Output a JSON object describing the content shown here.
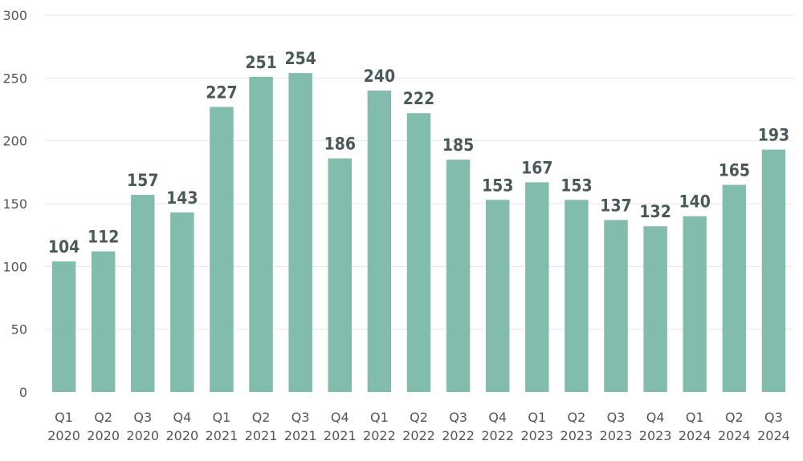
{
  "chart_data": {
    "type": "bar",
    "categories": [
      [
        "Q1",
        "2020"
      ],
      [
        "Q2",
        "2020"
      ],
      [
        "Q3",
        "2020"
      ],
      [
        "Q4",
        "2020"
      ],
      [
        "Q1",
        "2021"
      ],
      [
        "Q2",
        "2021"
      ],
      [
        "Q3",
        "2021"
      ],
      [
        "Q4",
        "2021"
      ],
      [
        "Q1",
        "2022"
      ],
      [
        "Q2",
        "2022"
      ],
      [
        "Q3",
        "2022"
      ],
      [
        "Q4",
        "2022"
      ],
      [
        "Q1",
        "2023"
      ],
      [
        "Q2",
        "2023"
      ],
      [
        "Q3",
        "2023"
      ],
      [
        "Q4",
        "2023"
      ],
      [
        "Q1",
        "2024"
      ],
      [
        "Q2",
        "2024"
      ],
      [
        "Q3",
        "2024"
      ]
    ],
    "values": [
      104,
      112,
      157,
      143,
      227,
      251,
      254,
      186,
      240,
      222,
      185,
      153,
      167,
      153,
      137,
      132,
      140,
      165,
      193
    ],
    "title": "",
    "xlabel": "",
    "ylabel": "",
    "ylim": [
      0,
      300
    ],
    "yticks": [
      0,
      50,
      100,
      150,
      200,
      250,
      300
    ],
    "grid": true,
    "bar_color": "#82bcad",
    "label_color": "#4a5a5a"
  }
}
